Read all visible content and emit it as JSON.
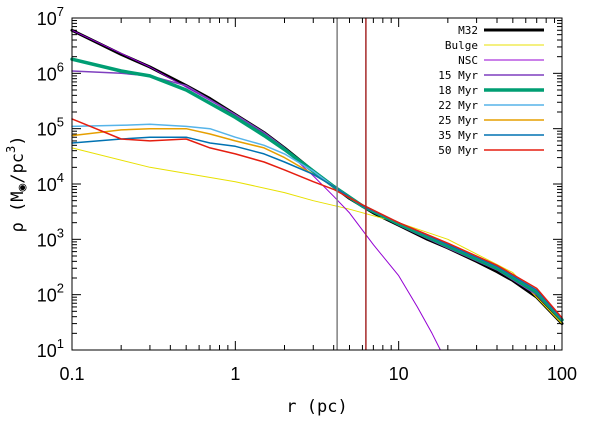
{
  "chart_data": {
    "type": "line",
    "x_scale": "log",
    "y_scale": "log",
    "xlim": [
      0.1,
      100
    ],
    "ylim": [
      10,
      10000000
    ],
    "xlabel": "r (pc)",
    "ylabel": "ρ (M◉/pc³)",
    "ylabel_parts": {
      "prefix": "ρ (M",
      "sun": "◉",
      "mid": "/pc",
      "sup": "3",
      "suffix": ")"
    },
    "x_ticks": [
      {
        "value": 0.1,
        "label": "0.1"
      },
      {
        "value": 1,
        "label": "1"
      },
      {
        "value": 10,
        "label": "10"
      },
      {
        "value": 100,
        "label": "100"
      }
    ],
    "y_ticks": [
      {
        "value": 10,
        "base": "10",
        "exp": "1"
      },
      {
        "value": 100,
        "base": "10",
        "exp": "2"
      },
      {
        "value": 1000,
        "base": "10",
        "exp": "3"
      },
      {
        "value": 10000,
        "base": "10",
        "exp": "4"
      },
      {
        "value": 100000,
        "base": "10",
        "exp": "5"
      },
      {
        "value": 1000000,
        "base": "10",
        "exp": "6"
      },
      {
        "value": 10000000,
        "base": "10",
        "exp": "7"
      }
    ],
    "vertical_lines": [
      {
        "x": 4.2,
        "color": "#808080"
      },
      {
        "x": 6.3,
        "color": "#a52a2a"
      }
    ],
    "legend_position": "top-right",
    "series": [
      {
        "name": "M32",
        "color": "#000000",
        "width": 3,
        "points": [
          [
            0.1,
            6000000
          ],
          [
            0.2,
            2200000
          ],
          [
            0.3,
            1300000
          ],
          [
            0.5,
            600000
          ],
          [
            0.7,
            350000
          ],
          [
            1,
            180000
          ],
          [
            1.5,
            85000
          ],
          [
            2,
            45000
          ],
          [
            3,
            17000
          ],
          [
            4,
            9000
          ],
          [
            5,
            5500
          ],
          [
            7,
            3000
          ],
          [
            10,
            1800
          ],
          [
            15,
            1000
          ],
          [
            20,
            700
          ],
          [
            30,
            400
          ],
          [
            40,
            260
          ],
          [
            50,
            180
          ],
          [
            70,
            90
          ],
          [
            100,
            30
          ]
        ]
      },
      {
        "name": "Bulge",
        "color": "#e8e000",
        "width": 1,
        "points": [
          [
            0.1,
            45000
          ],
          [
            0.3,
            20000
          ],
          [
            1,
            11000
          ],
          [
            2,
            7000
          ],
          [
            3,
            5000
          ],
          [
            5,
            3500
          ],
          [
            10,
            2000
          ],
          [
            20,
            1000
          ],
          [
            50,
            250
          ],
          [
            100,
            30
          ]
        ]
      },
      {
        "name": "NSC",
        "color": "#9400d3",
        "width": 1,
        "points": [
          [
            0.1,
            6000000
          ],
          [
            0.3,
            1300000
          ],
          [
            1,
            180000
          ],
          [
            2,
            42000
          ],
          [
            3,
            14000
          ],
          [
            4,
            6000
          ],
          [
            5,
            3000
          ],
          [
            7,
            800
          ],
          [
            10,
            220
          ],
          [
            13,
            60
          ],
          [
            16,
            20
          ],
          [
            18,
            10
          ]
        ]
      },
      {
        "name": "15 Myr",
        "color": "#7f3fbf",
        "width": 1.5,
        "points": [
          [
            0.1,
            1100000
          ],
          [
            0.2,
            1000000
          ],
          [
            0.3,
            900000
          ],
          [
            0.5,
            600000
          ],
          [
            1,
            180000
          ],
          [
            1.5,
            85000
          ],
          [
            2,
            45000
          ],
          [
            3,
            17000
          ],
          [
            4,
            9000
          ],
          [
            6,
            4000
          ],
          [
            10,
            1800
          ],
          [
            20,
            700
          ],
          [
            40,
            280
          ],
          [
            70,
            100
          ],
          [
            100,
            33
          ]
        ]
      },
      {
        "name": "18 Myr",
        "color": "#009e73",
        "width": 3.5,
        "points": [
          [
            0.1,
            1800000
          ],
          [
            0.2,
            1100000
          ],
          [
            0.3,
            900000
          ],
          [
            0.5,
            500000
          ],
          [
            1,
            160000
          ],
          [
            1.5,
            75000
          ],
          [
            2,
            42000
          ],
          [
            3,
            17000
          ],
          [
            4,
            9000
          ],
          [
            6,
            4000
          ],
          [
            10,
            1900
          ],
          [
            20,
            750
          ],
          [
            40,
            300
          ],
          [
            70,
            110
          ],
          [
            100,
            35
          ]
        ]
      },
      {
        "name": "22 Myr",
        "color": "#56b4e9",
        "width": 1.5,
        "points": [
          [
            0.1,
            110000
          ],
          [
            0.2,
            115000
          ],
          [
            0.3,
            120000
          ],
          [
            0.5,
            110000
          ],
          [
            0.7,
            100000
          ],
          [
            1,
            70000
          ],
          [
            1.5,
            50000
          ],
          [
            2,
            35000
          ],
          [
            3,
            17000
          ],
          [
            4,
            9000
          ],
          [
            6,
            4000
          ],
          [
            10,
            2000
          ],
          [
            20,
            800
          ],
          [
            40,
            320
          ],
          [
            70,
            120
          ],
          [
            100,
            36
          ]
        ]
      },
      {
        "name": "25 Myr",
        "color": "#e69f00",
        "width": 1.5,
        "points": [
          [
            0.1,
            75000
          ],
          [
            0.2,
            95000
          ],
          [
            0.3,
            100000
          ],
          [
            0.5,
            100000
          ],
          [
            0.7,
            80000
          ],
          [
            1,
            60000
          ],
          [
            1.5,
            45000
          ],
          [
            2,
            30000
          ],
          [
            3,
            15000
          ],
          [
            4,
            9000
          ],
          [
            6,
            4000
          ],
          [
            10,
            2000
          ],
          [
            20,
            800
          ],
          [
            40,
            320
          ],
          [
            70,
            120
          ],
          [
            100,
            36
          ]
        ]
      },
      {
        "name": "35 Myr",
        "color": "#0072b2",
        "width": 1.5,
        "points": [
          [
            0.1,
            55000
          ],
          [
            0.2,
            65000
          ],
          [
            0.3,
            70000
          ],
          [
            0.5,
            70000
          ],
          [
            0.7,
            55000
          ],
          [
            1,
            48000
          ],
          [
            1.5,
            35000
          ],
          [
            2,
            25000
          ],
          [
            3,
            15000
          ],
          [
            4,
            9000
          ],
          [
            6,
            4000
          ],
          [
            10,
            2000
          ],
          [
            20,
            800
          ],
          [
            40,
            320
          ],
          [
            70,
            120
          ],
          [
            100,
            36
          ]
        ]
      },
      {
        "name": "50 Myr",
        "color": "#e51e10",
        "width": 1.5,
        "points": [
          [
            0.1,
            150000
          ],
          [
            0.2,
            65000
          ],
          [
            0.3,
            60000
          ],
          [
            0.5,
            65000
          ],
          [
            0.7,
            45000
          ],
          [
            1,
            35000
          ],
          [
            1.5,
            25000
          ],
          [
            2,
            18000
          ],
          [
            3,
            11000
          ],
          [
            4,
            8000
          ],
          [
            6,
            4200
          ],
          [
            10,
            2000
          ],
          [
            20,
            850
          ],
          [
            40,
            340
          ],
          [
            70,
            130
          ],
          [
            100,
            38
          ]
        ]
      }
    ]
  }
}
